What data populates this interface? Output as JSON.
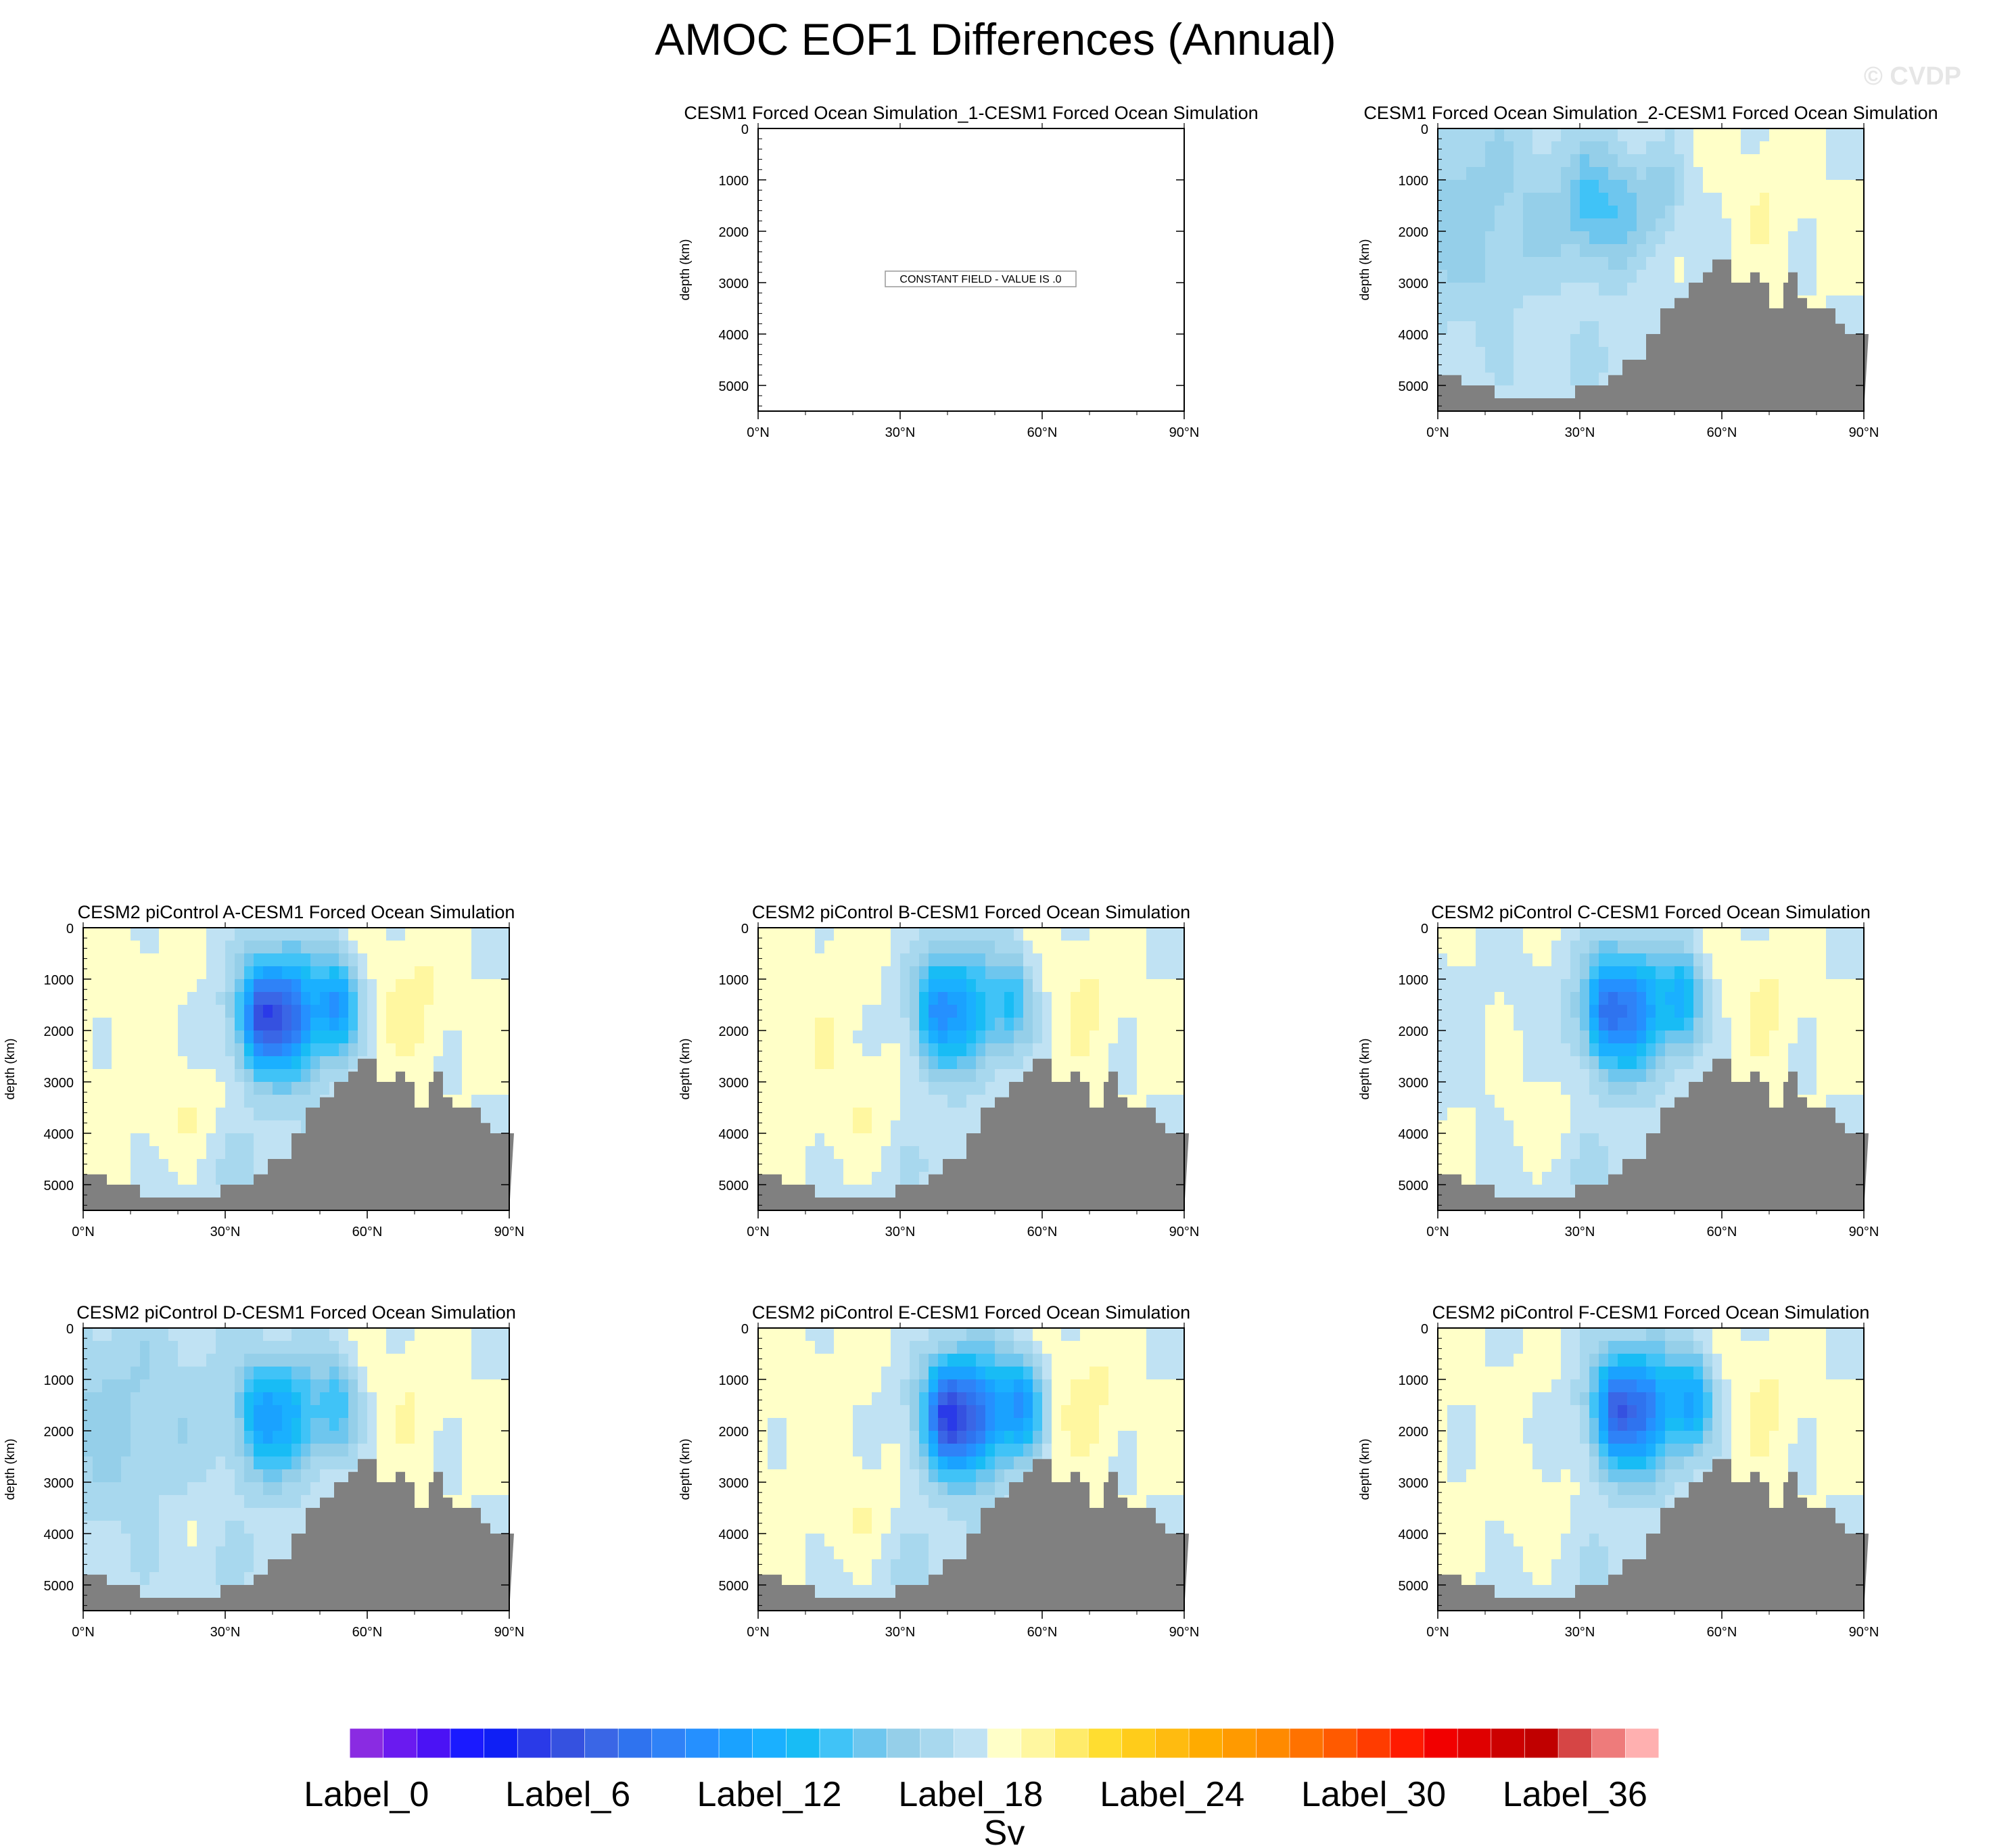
{
  "title": "AMOC EOF1 Differences (Annual)",
  "watermark": "© CVDP",
  "chart_data": {
    "type": "contour-panels",
    "title": "AMOC EOF1 Differences (Annual)",
    "xlabel": "",
    "ylabel": "depth (km)",
    "x_ticks": [
      "0°N",
      "30°N",
      "60°N",
      "90°N"
    ],
    "y_ticks": [
      "0",
      "1000",
      "2000",
      "3000",
      "4000",
      "5000"
    ],
    "xlim": [
      0,
      90
    ],
    "ylim": [
      0,
      5500
    ],
    "colorbar": {
      "units": "Sv",
      "labels": [
        "Label_0",
        "Label_6",
        "Label_12",
        "Label_18",
        "Label_24",
        "Label_30",
        "Label_36"
      ],
      "colors": [
        "#8a2be2",
        "#6a1af0",
        "#4b12f5",
        "#1a1aff",
        "#0f1ff5",
        "#2a3ae8",
        "#3551e0",
        "#3a66e6",
        "#2f73ef",
        "#2f82f7",
        "#2590ff",
        "#1aa2ff",
        "#1ab0ff",
        "#18bcf5",
        "#40c3f7",
        "#6ec6ee",
        "#95cfe9",
        "#a8d8ee",
        "#c0e2f3",
        "#ffffc8",
        "#fff7a0",
        "#ffeb6a",
        "#ffdd30",
        "#ffcc1a",
        "#ffbb10",
        "#ffab00",
        "#ff9a00",
        "#ff8a00",
        "#ff7200",
        "#ff5a00",
        "#ff3c00",
        "#ff1a00",
        "#f20000",
        "#e00000",
        "#cc0000",
        "#c00000",
        "#d64545",
        "#ee7b7b",
        "#ffb0b0"
      ]
    },
    "panels": [
      {
        "title": "CESM1 Forced Ocean Simulation_1-CESM1 Forced Ocean Simulation",
        "constant_field": "CONSTANT FIELD - VALUE IS .0",
        "amp": 0,
        "base": 0,
        "ridge": 0,
        "center_lat": 40,
        "center_depth": 1700
      },
      {
        "title": "CESM1 Forced Ocean Simulation_2-CESM1 Forced Ocean Simulation",
        "amp": 1.6,
        "base": -1.1,
        "ridge": 0.4,
        "center_lat": 36,
        "center_depth": 1500
      },
      {
        "title": "CESM2 piControl A-CESM1 Forced Ocean Simulation",
        "amp": 5.2,
        "base": 0.2,
        "ridge": 0.6,
        "center_lat": 42,
        "center_depth": 1700
      },
      {
        "title": "CESM2 piControl B-CESM1 Forced Ocean Simulation",
        "amp": 3.4,
        "base": 0.3,
        "ridge": 0.5,
        "center_lat": 42,
        "center_depth": 1600
      },
      {
        "title": "CESM2 piControl C-CESM1 Forced Ocean Simulation",
        "amp": 4.3,
        "base": -0.1,
        "ridge": 0.5,
        "center_lat": 40,
        "center_depth": 1600
      },
      {
        "title": "CESM2 piControl D-CESM1 Forced Ocean Simulation",
        "amp": 3.0,
        "base": -1.0,
        "ridge": 0.4,
        "center_lat": 42,
        "center_depth": 1700
      },
      {
        "title": "CESM2 piControl E-CESM1 Forced Ocean Simulation",
        "amp": 5.4,
        "base": 0.2,
        "ridge": 0.6,
        "center_lat": 44,
        "center_depth": 1700
      },
      {
        "title": "CESM2 piControl F-CESM1 Forced Ocean Simulation",
        "amp": 4.8,
        "base": 0.1,
        "ridge": 0.5,
        "center_lat": 42,
        "center_depth": 1600
      }
    ],
    "bathymetry_depth_m": [
      4800,
      4800,
      4800,
      4800,
      4800,
      5000,
      5000,
      5000,
      5000,
      5000,
      5000,
      5000,
      5250,
      5250,
      5250,
      5250,
      5250,
      5250,
      5250,
      5250,
      5250,
      5250,
      5250,
      5250,
      5250,
      5250,
      5250,
      5250,
      5250,
      5000,
      5000,
      5000,
      5000,
      5000,
      5000,
      5000,
      4800,
      4800,
      4800,
      4500,
      4500,
      4500,
      4500,
      4500,
      4000,
      4000,
      4000,
      3500,
      3500,
      3500,
      3300,
      3300,
      3300,
      3000,
      3000,
      3000,
      2800,
      2800,
      2550,
      2550,
      2550,
      2550,
      3000,
      3000,
      3000,
      3000,
      2800,
      2800,
      3000,
      3000,
      3500,
      3500,
      3500,
      3000,
      2800,
      2800,
      3300,
      3300,
      3500,
      3500,
      3500,
      3500,
      3500,
      3500,
      3800,
      3800,
      4000,
      4000,
      4000,
      4000,
      4000
    ]
  }
}
